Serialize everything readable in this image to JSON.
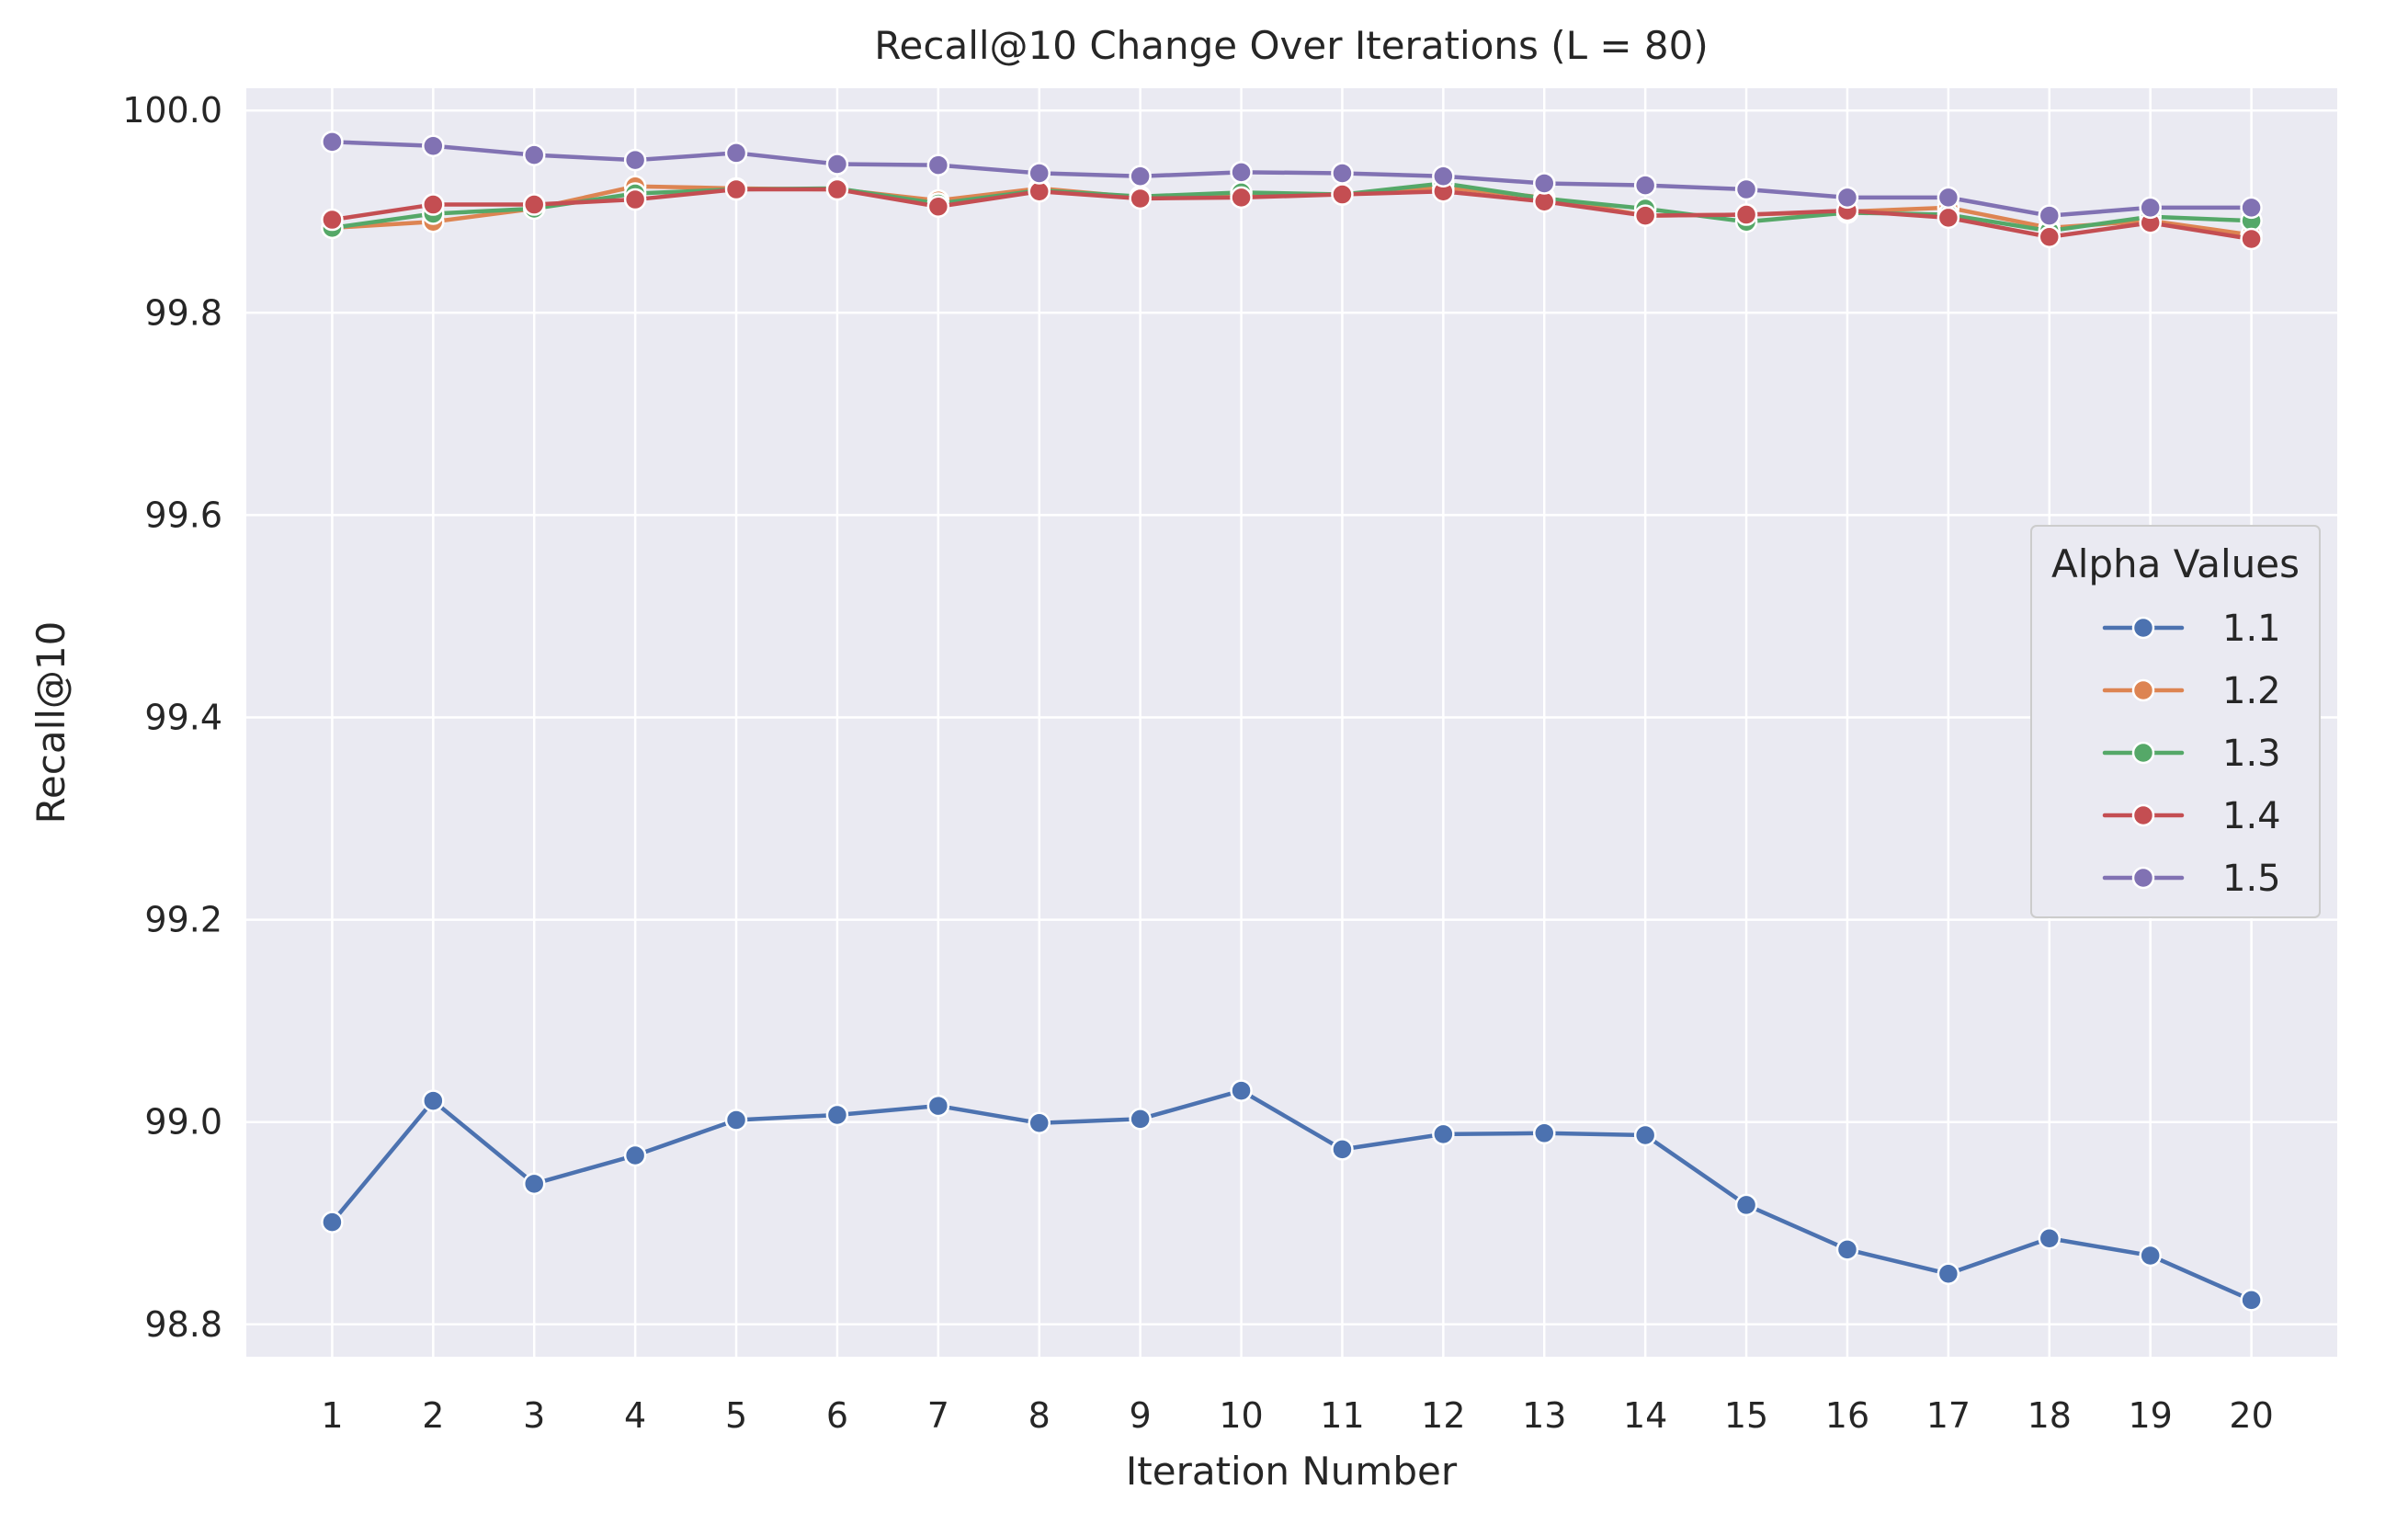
{
  "chart_data": {
    "type": "line",
    "title": "Recall@10 Change Over Iterations (L = 80)",
    "xlabel": "Iteration Number",
    "ylabel": "Recall@10",
    "x": [
      1,
      2,
      3,
      4,
      5,
      6,
      7,
      8,
      9,
      10,
      11,
      12,
      13,
      14,
      15,
      16,
      17,
      18,
      19,
      20
    ],
    "ylim": [
      98.768,
      100.022
    ],
    "yticks": [
      98.8,
      99.0,
      99.2,
      99.4,
      99.6,
      99.8,
      100.0
    ],
    "ytick_labels": [
      "98.8",
      "99.0",
      "99.2",
      "99.4",
      "99.6",
      "99.8",
      "100.0"
    ],
    "grid": true,
    "legend": {
      "title": "Alpha Values",
      "placement": "center-right"
    },
    "series": [
      {
        "name": "1.1",
        "color": "#4c72b0",
        "values": [
          98.901,
          99.021,
          98.939,
          98.967,
          99.002,
          99.007,
          99.016,
          98.999,
          99.003,
          99.031,
          98.973,
          98.988,
          98.989,
          98.987,
          98.918,
          98.874,
          98.85,
          98.885,
          98.868,
          98.824
        ]
      },
      {
        "name": "1.2",
        "color": "#dd8452",
        "values": [
          99.884,
          99.89,
          99.903,
          99.925,
          99.923,
          99.922,
          99.911,
          99.923,
          99.914,
          99.916,
          99.917,
          99.924,
          99.914,
          99.896,
          99.897,
          99.9,
          99.904,
          99.884,
          99.891,
          99.877
        ]
      },
      {
        "name": "1.3",
        "color": "#55a868",
        "values": [
          99.884,
          99.898,
          99.903,
          99.918,
          99.922,
          99.923,
          99.908,
          99.921,
          99.915,
          99.919,
          99.917,
          99.928,
          99.913,
          99.903,
          99.89,
          99.899,
          99.897,
          99.881,
          99.895,
          99.891
        ]
      },
      {
        "name": "1.4",
        "color": "#c44e52",
        "values": [
          99.892,
          99.907,
          99.907,
          99.912,
          99.922,
          99.922,
          99.905,
          99.92,
          99.913,
          99.914,
          99.917,
          99.92,
          99.91,
          99.896,
          99.897,
          99.901,
          99.894,
          99.875,
          99.889,
          99.873
        ]
      },
      {
        "name": "1.5",
        "color": "#8172b3",
        "values": [
          99.969,
          99.965,
          99.956,
          99.951,
          99.958,
          99.947,
          99.946,
          99.938,
          99.935,
          99.939,
          99.938,
          99.935,
          99.928,
          99.926,
          99.922,
          99.914,
          99.914,
          99.896,
          99.904,
          99.904
        ]
      }
    ]
  }
}
